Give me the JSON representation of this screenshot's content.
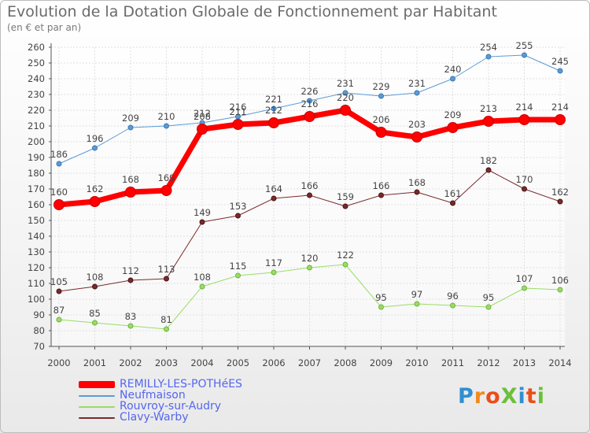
{
  "title": "Evolution de la Dotation Globale de Fonctionnement par Habitant",
  "subtitle": "(en € et par an)",
  "logo": "ProXiti",
  "colors": {
    "remilly": "#ff0000",
    "neufmaison": "#5b9bd5",
    "rouvroy": "#99dd66",
    "clavy": "#7a2a2a",
    "legend_text": "#5566ee",
    "grid": "#e0e0e0",
    "axis": "#555555",
    "text": "#444444"
  },
  "chart_data": {
    "type": "line",
    "title": "Evolution de la Dotation Globale de Fonctionnement par Habitant",
    "subtitle": "(en € et par an)",
    "xlabel": "",
    "ylabel": "",
    "ylim": [
      70,
      260
    ],
    "ytick_step": 10,
    "grid": true,
    "legend_position": "bottom-left",
    "categories": [
      "2000",
      "2001",
      "2002",
      "2003",
      "2004",
      "2005",
      "2006",
      "2007",
      "2008",
      "2009",
      "2010",
      "2011",
      "2012",
      "2013",
      "2014"
    ],
    "series": [
      {
        "key": "remilly",
        "name": "REMILLY-LES-POTHéES",
        "values": [
          160,
          162,
          168,
          169,
          208,
          211,
          212,
          216,
          220,
          206,
          203,
          209,
          213,
          214,
          214
        ]
      },
      {
        "key": "neufmaison",
        "name": "Neufmaison",
        "values": [
          186,
          196,
          209,
          210,
          212,
          216,
          221,
          226,
          231,
          229,
          231,
          240,
          254,
          255,
          245
        ]
      },
      {
        "key": "rouvroy",
        "name": "Rouvroy-sur-Audry",
        "values": [
          87,
          85,
          83,
          81,
          108,
          115,
          117,
          120,
          122,
          95,
          97,
          96,
          95,
          107,
          106
        ]
      },
      {
        "key": "clavy",
        "name": "Clavy-Warby",
        "values": [
          105,
          108,
          112,
          113,
          149,
          153,
          164,
          166,
          159,
          166,
          168,
          161,
          182,
          170,
          162
        ]
      }
    ]
  }
}
